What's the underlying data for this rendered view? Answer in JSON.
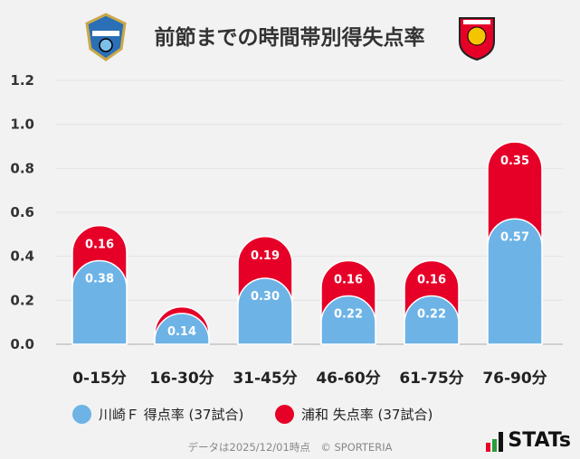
{
  "title": "前節までの時間帯別得失点率",
  "chart_data": {
    "type": "bar",
    "stacked": true,
    "categories": [
      "0-15分",
      "16-30分",
      "31-45分",
      "46-60分",
      "61-75分",
      "76-90分"
    ],
    "series": [
      {
        "name": "川崎Ｆ 得点率 (37試合)",
        "color": "#6db3e6",
        "values": [
          0.38,
          0.14,
          0.3,
          0.22,
          0.22,
          0.57
        ],
        "labels": [
          "0.38",
          "0.14",
          "0.30",
          "0.22",
          "0.22",
          "0.57"
        ]
      },
      {
        "name": "浦和 失点率 (37試合)",
        "color": "#e60028",
        "values": [
          0.16,
          0.03,
          0.19,
          0.16,
          0.16,
          0.35
        ],
        "labels": [
          "0.16",
          "",
          "0.19",
          "0.16",
          "0.16",
          "0.35"
        ]
      }
    ],
    "yticks": [
      "0.0",
      "0.2",
      "0.4",
      "0.6",
      "0.8",
      "1.0",
      "1.2"
    ],
    "ylim": [
      0,
      1.2
    ],
    "grid": true,
    "legend": "bottom"
  },
  "footer": "データは2025/12/01時点　© SPORTERIA",
  "brand": "STATs"
}
